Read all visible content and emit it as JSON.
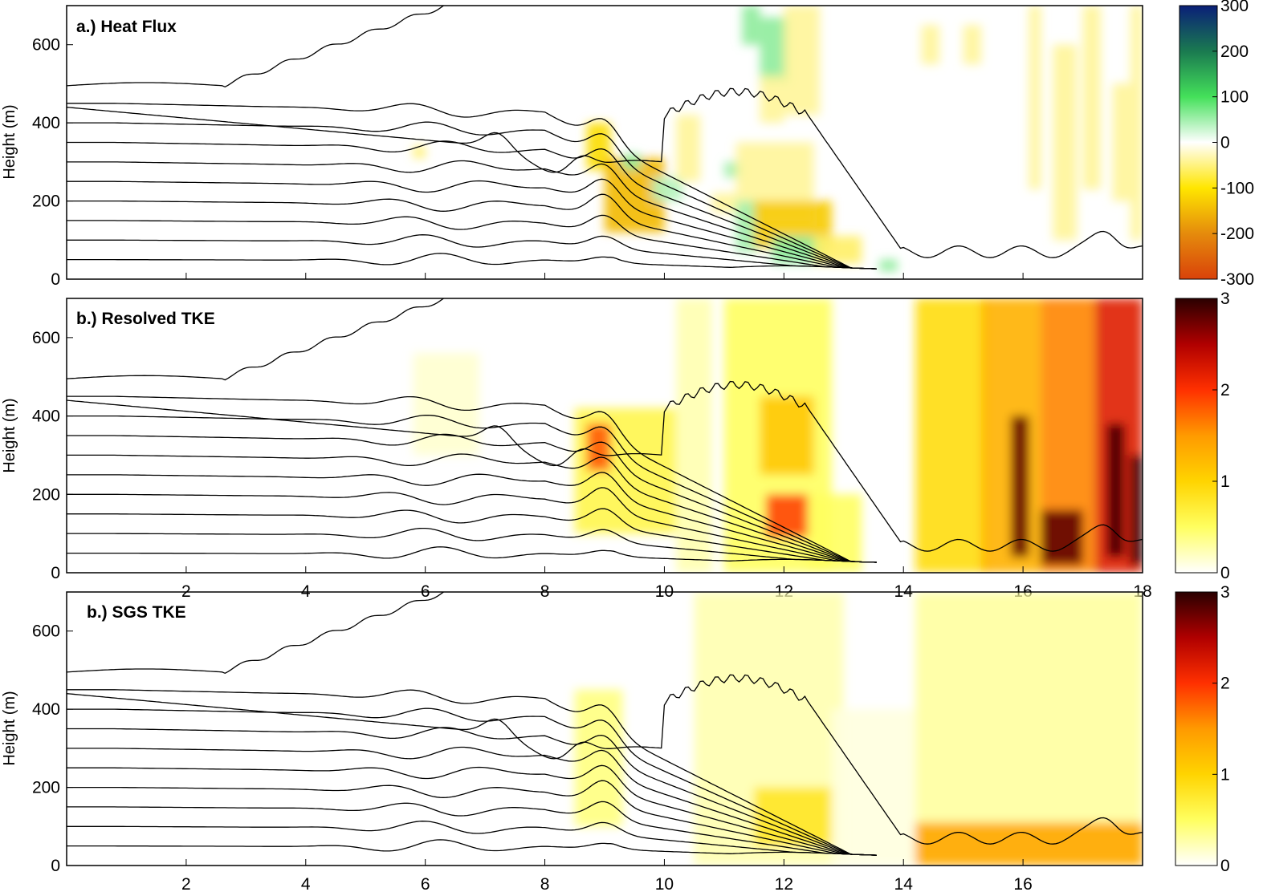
{
  "chart_data": [
    {
      "type": "heatmap",
      "title": "a.) Heat Flux",
      "xlabel": "",
      "ylabel": "Height (m)",
      "xlim": [
        0,
        18
      ],
      "ylim": [
        0,
        700
      ],
      "x_ticks": [],
      "y_ticks": [
        0,
        200,
        400,
        600
      ],
      "colorbar": {
        "ticks": [
          300,
          200,
          100,
          0,
          -100,
          -200,
          -300
        ],
        "range": [
          -300,
          300
        ],
        "colors": [
          "#d9420a",
          "#e58b0c",
          "#ffe600",
          "#ffffff",
          "#44e05a",
          "#1a7a50",
          "#0a1f78"
        ]
      },
      "regions": [
        {
          "x": [
            5.8,
            6.0
          ],
          "y": [
            310,
            340
          ],
          "value": -60
        },
        {
          "x": [
            8.7,
            9.1
          ],
          "y": [
            280,
            400
          ],
          "value": -110
        },
        {
          "x": [
            9.0,
            10.0
          ],
          "y": [
            120,
            310
          ],
          "value": -150
        },
        {
          "x": [
            9.3,
            9.6
          ],
          "y": [
            280,
            320
          ],
          "value": 60
        },
        {
          "x": [
            9.8,
            10.3
          ],
          "y": [
            200,
            260
          ],
          "value": 40
        },
        {
          "x": [
            10.2,
            10.6
          ],
          "y": [
            250,
            420
          ],
          "value": -40
        },
        {
          "x": [
            10.8,
            11.2
          ],
          "y": [
            170,
            220
          ],
          "value": -40
        },
        {
          "x": [
            11.0,
            11.3
          ],
          "y": [
            260,
            300
          ],
          "value": 50
        },
        {
          "x": [
            11.2,
            12.5
          ],
          "y": [
            140,
            350
          ],
          "value": -40
        },
        {
          "x": [
            11.3,
            11.6
          ],
          "y": [
            600,
            700
          ],
          "value": 60
        },
        {
          "x": [
            11.6,
            12.1
          ],
          "y": [
            500,
            670
          ],
          "value": 60
        },
        {
          "x": [
            11.6,
            12.0
          ],
          "y": [
            400,
            520
          ],
          "value": -40
        },
        {
          "x": [
            12.0,
            12.6
          ],
          "y": [
            420,
            700
          ],
          "value": -40
        },
        {
          "x": [
            11.2,
            11.6
          ],
          "y": [
            70,
            200
          ],
          "value": 50
        },
        {
          "x": [
            11.5,
            12.8
          ],
          "y": [
            80,
            200
          ],
          "value": -130
        },
        {
          "x": [
            11.8,
            12.7
          ],
          "y": [
            40,
            110
          ],
          "value": 60
        },
        {
          "x": [
            12.5,
            13.3
          ],
          "y": [
            40,
            110
          ],
          "value": -60
        },
        {
          "x": [
            13.6,
            13.9
          ],
          "y": [
            20,
            50
          ],
          "value": 60
        },
        {
          "x": [
            14.3,
            14.6
          ],
          "y": [
            550,
            650
          ],
          "value": -40
        },
        {
          "x": [
            15.0,
            15.3
          ],
          "y": [
            550,
            650
          ],
          "value": -40
        },
        {
          "x": [
            16.1,
            16.3
          ],
          "y": [
            230,
            700
          ],
          "value": -40
        },
        {
          "x": [
            16.5,
            16.9
          ],
          "y": [
            100,
            600
          ],
          "value": -40
        },
        {
          "x": [
            17.0,
            17.3
          ],
          "y": [
            230,
            700
          ],
          "value": -40
        },
        {
          "x": [
            17.5,
            17.8
          ],
          "y": [
            200,
            500
          ],
          "value": -40
        },
        {
          "x": [
            17.8,
            18.0
          ],
          "y": [
            100,
            700
          ],
          "value": -40
        }
      ]
    },
    {
      "type": "heatmap",
      "title": "b.) Resolved TKE",
      "xlabel": "",
      "ylabel": "Height (m)",
      "xlim": [
        0,
        18
      ],
      "ylim": [
        0,
        700
      ],
      "x_ticks": [
        2,
        4,
        6,
        8,
        10,
        12,
        14,
        16,
        18
      ],
      "y_ticks": [
        0,
        200,
        400,
        600
      ],
      "colorbar": {
        "ticks": [
          0,
          1,
          2,
          3
        ],
        "range": [
          0,
          3
        ],
        "colors": [
          "#ffffff",
          "#ffff60",
          "#ffd400",
          "#ff9a00",
          "#ff3000",
          "#b00000",
          "#2a0000"
        ]
      },
      "regions": [
        {
          "x": [
            5.8,
            6.9
          ],
          "y": [
            300,
            560
          ],
          "value": 0.15
        },
        {
          "x": [
            8.5,
            10.2
          ],
          "y": [
            100,
            420
          ],
          "value": 0.6
        },
        {
          "x": [
            8.7,
            9.1
          ],
          "y": [
            260,
            380
          ],
          "value": 1.8
        },
        {
          "x": [
            10.2,
            10.8
          ],
          "y": [
            0,
            700
          ],
          "value": 0.25
        },
        {
          "x": [
            11.0,
            12.8
          ],
          "y": [
            0,
            700
          ],
          "value": 0.5
        },
        {
          "x": [
            11.6,
            12.5
          ],
          "y": [
            250,
            450
          ],
          "value": 1.1
        },
        {
          "x": [
            11.7,
            12.4
          ],
          "y": [
            90,
            200
          ],
          "value": 1.9
        },
        {
          "x": [
            12.4,
            13.3
          ],
          "y": [
            0,
            200
          ],
          "value": 0.5
        },
        {
          "x": [
            14.2,
            15.4
          ],
          "y": [
            0,
            700
          ],
          "value": 0.9
        },
        {
          "x": [
            15.3,
            16.3
          ],
          "y": [
            0,
            700
          ],
          "value": 1.3
        },
        {
          "x": [
            16.3,
            17.2
          ],
          "y": [
            0,
            700
          ],
          "value": 1.6
        },
        {
          "x": [
            17.2,
            18.0
          ],
          "y": [
            0,
            700
          ],
          "value": 2.2
        },
        {
          "x": [
            15.8,
            16.1
          ],
          "y": [
            40,
            400
          ],
          "value": 2.8
        },
        {
          "x": [
            16.3,
            17.0
          ],
          "y": [
            20,
            160
          ],
          "value": 2.8
        },
        {
          "x": [
            17.4,
            17.7
          ],
          "y": [
            40,
            380
          ],
          "value": 2.9
        },
        {
          "x": [
            17.8,
            18.0
          ],
          "y": [
            20,
            300
          ],
          "value": 3.0
        }
      ]
    },
    {
      "type": "heatmap",
      "title": "b.) SGS TKE",
      "xlabel": "",
      "ylabel": "Height (m)",
      "xlim": [
        0,
        18
      ],
      "ylim": [
        0,
        700
      ],
      "x_ticks": [
        2,
        4,
        6,
        8,
        10,
        12,
        14,
        16
      ],
      "y_ticks": [
        0,
        200,
        400,
        600
      ],
      "colorbar": {
        "ticks": [
          0,
          1,
          2,
          3
        ],
        "range": [
          0,
          3
        ],
        "colors": [
          "#ffffff",
          "#ffff60",
          "#ffd400",
          "#ff9a00",
          "#ff3000",
          "#b00000",
          "#2a0000"
        ]
      },
      "regions": [
        {
          "x": [
            8.5,
            9.3
          ],
          "y": [
            100,
            450
          ],
          "value": 0.4
        },
        {
          "x": [
            10.5,
            13.0
          ],
          "y": [
            0,
            700
          ],
          "value": 0.25
        },
        {
          "x": [
            11.5,
            12.8
          ],
          "y": [
            50,
            200
          ],
          "value": 0.8
        },
        {
          "x": [
            12.8,
            14.2
          ],
          "y": [
            0,
            400
          ],
          "value": 0.1
        },
        {
          "x": [
            14.2,
            18.0
          ],
          "y": [
            0,
            700
          ],
          "value": 0.3
        },
        {
          "x": [
            14.2,
            18.0
          ],
          "y": [
            0,
            110
          ],
          "value": 1.4
        }
      ]
    }
  ]
}
